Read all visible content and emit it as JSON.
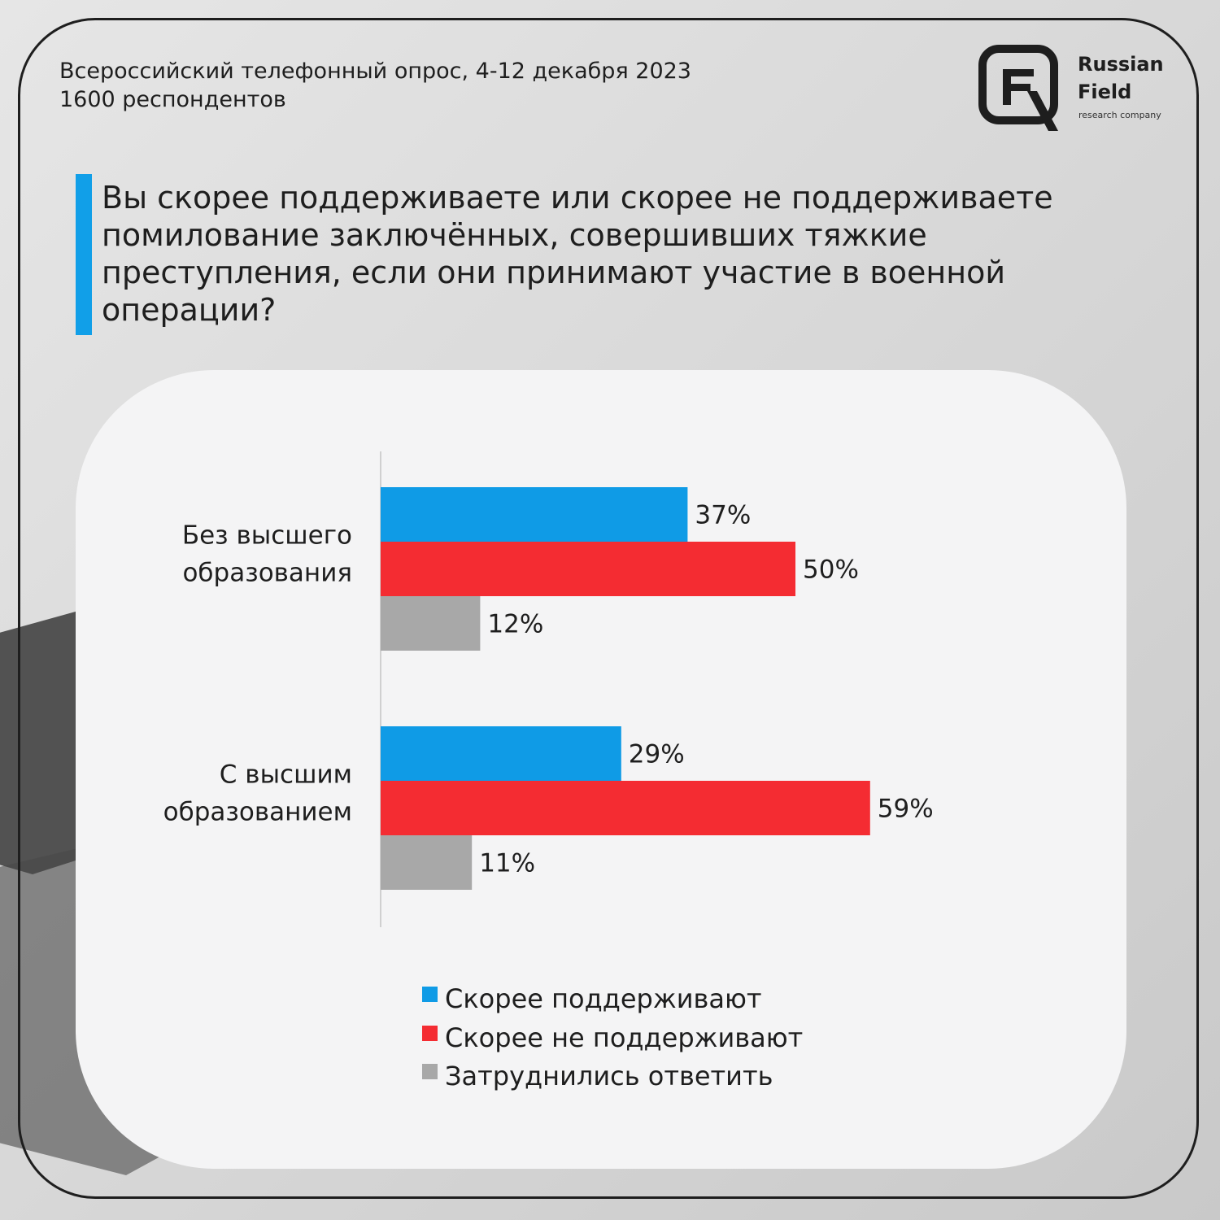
{
  "header": {
    "survey_line1": "Всероссийский телефонный опрос, 4-12 декабря 2023",
    "survey_line2": "1600 респондентов"
  },
  "logo": {
    "word1": "Russian",
    "word2": "Field",
    "tagline": "research company"
  },
  "question": "Вы скорее поддерживаете или скорее не поддерживаете помилование заключённых, совершивших тяжкие преступления, если они принимают участие в военной операции?",
  "colors": {
    "support": "#0f9be6",
    "not_support": "#f42c32",
    "undecided": "#a8a8a8",
    "accent": "#119fe8"
  },
  "chart_data": {
    "type": "bar",
    "orientation": "horizontal",
    "categories": [
      [
        "Без высшего",
        "образования"
      ],
      [
        "С высшим",
        "образованием"
      ]
    ],
    "series": [
      {
        "name": "Скорее поддерживают",
        "values": [
          37,
          29
        ],
        "labels": [
          "37%",
          "29%"
        ],
        "color": "#0f9be6"
      },
      {
        "name": "Скорее не поддерживают",
        "values": [
          50,
          59
        ],
        "labels": [
          "50%",
          "59%"
        ],
        "color": "#f42c32"
      },
      {
        "name": "Затруднились ответить",
        "values": [
          12,
          11
        ],
        "labels": [
          "12%",
          "11%"
        ],
        "color": "#a8a8a8"
      }
    ],
    "unit": "%",
    "xlim": [
      0,
      100
    ],
    "grid": false,
    "legend_position": "bottom"
  }
}
